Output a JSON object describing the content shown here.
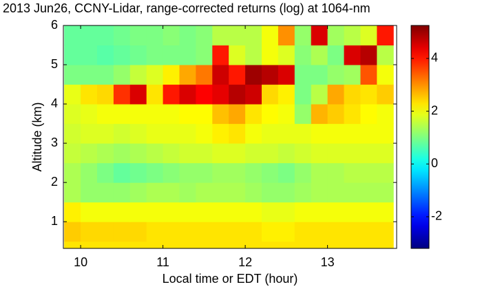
{
  "chart_data": {
    "type": "heatmap",
    "title": "2013 Jun26, CCNY-Lidar, range-corrected returns (log) at 1064-nm",
    "xlabel": "Local time or EDT (hour)",
    "ylabel": "Altitude (km)",
    "colormap": "jet",
    "xbins": [
      9.8,
      10.0,
      10.2,
      10.4,
      10.6,
      10.8,
      11.0,
      11.2,
      11.4,
      11.6,
      11.8,
      12.0,
      12.2,
      12.4,
      12.6,
      12.8,
      13.0,
      13.2,
      13.4,
      13.6,
      13.8
    ],
    "ybins": [
      0.3,
      0.5,
      1.0,
      1.5,
      2.0,
      2.5,
      3.0,
      3.5,
      4.0,
      4.5,
      5.0,
      5.5,
      6.0
    ],
    "values": [
      [
        2.3,
        2.3,
        2.3,
        2.3,
        2.3,
        2.3,
        2.3,
        2.3,
        2.3,
        2.3,
        2.3,
        2.3,
        2.3,
        2.3,
        2.3,
        2.3,
        2.3,
        2.3,
        2.3,
        2.3
      ],
      [
        2.5,
        2.4,
        2.4,
        2.4,
        2.4,
        2.3,
        2.3,
        2.3,
        2.3,
        2.3,
        2.3,
        2.3,
        2.2,
        2.2,
        2.3,
        2.3,
        2.3,
        2.3,
        2.3,
        2.3
      ],
      [
        2.2,
        2.0,
        2.0,
        2.0,
        2.0,
        2.0,
        2.0,
        2.0,
        2.0,
        2.0,
        2.0,
        2.0,
        1.9,
        1.9,
        2.0,
        2.0,
        2.0,
        2.0,
        2.0,
        2.0
      ],
      [
        1.4,
        1.2,
        1.2,
        1.2,
        1.3,
        1.4,
        1.4,
        1.3,
        1.4,
        1.4,
        1.4,
        1.3,
        1.2,
        1.2,
        1.3,
        1.4,
        1.4,
        1.4,
        1.4,
        1.4
      ],
      [
        1.4,
        1.2,
        1.0,
        0.8,
        0.9,
        1.0,
        1.1,
        1.2,
        1.2,
        1.3,
        1.3,
        1.2,
        1.1,
        1.0,
        1.2,
        1.4,
        1.4,
        1.5,
        1.5,
        1.5
      ],
      [
        1.6,
        1.5,
        1.4,
        1.3,
        1.4,
        1.5,
        1.6,
        1.7,
        1.7,
        1.8,
        1.8,
        1.7,
        1.7,
        1.6,
        1.7,
        1.8,
        1.8,
        1.8,
        1.8,
        1.8
      ],
      [
        1.7,
        1.8,
        1.8,
        1.7,
        1.8,
        1.9,
        1.9,
        1.9,
        2.0,
        2.2,
        2.3,
        2.0,
        1.9,
        1.9,
        1.9,
        2.0,
        2.0,
        2.0,
        2.0,
        2.0
      ],
      [
        1.8,
        1.9,
        2.0,
        2.0,
        2.0,
        2.0,
        2.0,
        2.1,
        2.1,
        2.6,
        2.8,
        2.3,
        2.1,
        2.0,
        1.2,
        2.7,
        2.5,
        2.3,
        2.1,
        2.0
      ],
      [
        1.9,
        2.3,
        2.4,
        3.8,
        4.5,
        2.3,
        4.0,
        4.5,
        4.2,
        4.4,
        4.8,
        4.6,
        2.4,
        2.2,
        1.0,
        1.5,
        2.8,
        2.4,
        2.3,
        2.5
      ],
      [
        1.0,
        1.0,
        1.0,
        1.2,
        1.6,
        1.8,
        2.2,
        2.8,
        3.2,
        4.6,
        4.0,
        5.0,
        4.8,
        4.5,
        1.0,
        1.0,
        1.2,
        1.3,
        3.5,
        2.0
      ],
      [
        0.8,
        0.8,
        0.7,
        0.8,
        0.9,
        1.0,
        1.0,
        1.0,
        1.1,
        4.0,
        1.8,
        1.5,
        2.0,
        1.8,
        1.1,
        1.4,
        1.0,
        4.5,
        4.8,
        1.5
      ],
      [
        0.8,
        0.8,
        0.8,
        0.9,
        1.0,
        1.0,
        1.1,
        1.0,
        1.1,
        1.5,
        1.5,
        1.5,
        2.0,
        3.0,
        1.2,
        4.5,
        1.3,
        1.5,
        1.8,
        4.0
      ]
    ],
    "xlim": [
      9.79,
      13.84
    ],
    "ylim": [
      0.32,
      6
    ],
    "xticks": [
      10,
      11,
      12,
      13
    ],
    "yticks": [
      1,
      2,
      3,
      4,
      5,
      6
    ],
    "clim": [
      -3.2,
      5.25
    ],
    "cticks": [
      -2,
      0,
      2,
      4
    ]
  }
}
